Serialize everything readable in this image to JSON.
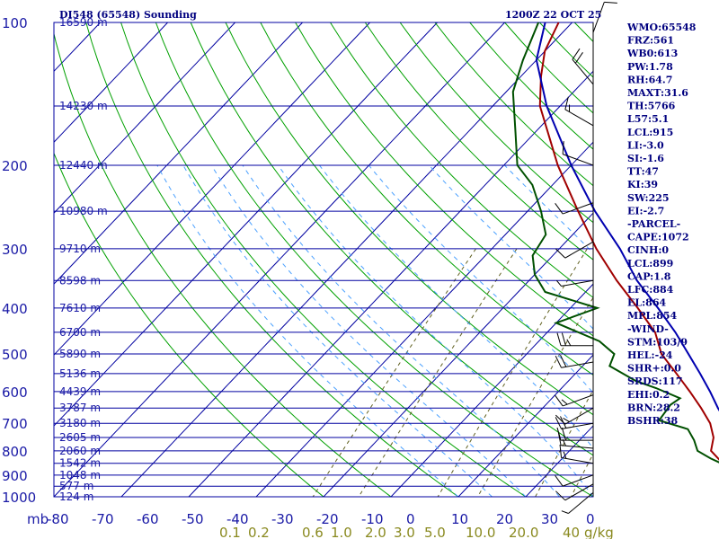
{
  "chart_data": {
    "type": "line",
    "title": "DI548 (65548) Sounding",
    "valid_time": "1200Z 22 OCT 25",
    "xlabel": "°C",
    "x_unit_label": "mb",
    "ylim": [
      1000,
      100
    ],
    "xlim": [
      -80,
      0
    ],
    "pressure_levels": [
      {
        "p": 100,
        "label": "100"
      },
      {
        "p": 200,
        "label": "200"
      },
      {
        "p": 300,
        "label": "300"
      },
      {
        "p": 400,
        "label": "400"
      },
      {
        "p": 500,
        "label": "500"
      },
      {
        "p": 600,
        "label": "600"
      },
      {
        "p": 700,
        "label": "700"
      },
      {
        "p": 800,
        "label": "800"
      },
      {
        "p": 900,
        "label": "900"
      },
      {
        "p": 1000,
        "label": "1000"
      }
    ],
    "height_labels": [
      {
        "p": 100,
        "label": "16590 m"
      },
      {
        "p": 150,
        "label": "14230 m"
      },
      {
        "p": 200,
        "label": "12440 m"
      },
      {
        "p": 250,
        "label": "10980 m"
      },
      {
        "p": 300,
        "label": "9710 m"
      },
      {
        "p": 350,
        "label": "8598 m"
      },
      {
        "p": 400,
        "label": "7610 m"
      },
      {
        "p": 450,
        "label": "6700 m"
      },
      {
        "p": 500,
        "label": "5890 m"
      },
      {
        "p": 550,
        "label": "5136 m"
      },
      {
        "p": 600,
        "label": "4439 m"
      },
      {
        "p": 650,
        "label": "3787 m"
      },
      {
        "p": 700,
        "label": "3180 m"
      },
      {
        "p": 750,
        "label": "2605 m"
      },
      {
        "p": 800,
        "label": "2060 m"
      },
      {
        "p": 850,
        "label": "1542 m"
      },
      {
        "p": 900,
        "label": "1048 m"
      },
      {
        "p": 950,
        "label": "577 m"
      },
      {
        "p": 1000,
        "label": "124 m"
      }
    ],
    "temp_ticks": [
      "-80",
      "-70",
      "-60",
      "-50",
      "-40",
      "-30",
      "-20",
      "-10",
      "0",
      "10",
      "20",
      "30",
      "0"
    ],
    "mixing_ratio_labels": [
      "0.1",
      "0.2",
      "0.6",
      "1.0",
      "2.0",
      "3.0",
      "5.0",
      "10.0",
      "20.0",
      "40",
      "g/kg"
    ],
    "series": [
      {
        "name": "Temperature",
        "color": "#a00000",
        "points": [
          {
            "p": 995,
            "t": 26
          },
          {
            "p": 975,
            "t": 24
          },
          {
            "p": 950,
            "t": 21.5
          },
          {
            "p": 925,
            "t": 20.5
          },
          {
            "p": 900,
            "t": 19
          },
          {
            "p": 875,
            "t": 17
          },
          {
            "p": 850,
            "t": 14.5
          },
          {
            "p": 800,
            "t": 11
          },
          {
            "p": 750,
            "t": 9.5
          },
          {
            "p": 700,
            "t": 7
          },
          {
            "p": 650,
            "t": 3.5
          },
          {
            "p": 600,
            "t": -0.5
          },
          {
            "p": 550,
            "t": -5
          },
          {
            "p": 500,
            "t": -10
          },
          {
            "p": 450,
            "t": -14
          },
          {
            "p": 400,
            "t": -20
          },
          {
            "p": 350,
            "t": -27
          },
          {
            "p": 300,
            "t": -34.5
          },
          {
            "p": 250,
            "t": -42.5
          },
          {
            "p": 200,
            "t": -52
          },
          {
            "p": 150,
            "t": -63
          },
          {
            "p": 130,
            "t": -67
          },
          {
            "p": 115,
            "t": -70
          },
          {
            "p": 100,
            "t": -72
          }
        ]
      },
      {
        "name": "Dewpoint",
        "color": "#005000",
        "points": [
          {
            "p": 990,
            "t": 20
          },
          {
            "p": 960,
            "t": 18
          },
          {
            "p": 930,
            "t": 17
          },
          {
            "p": 900,
            "t": 16
          },
          {
            "p": 870,
            "t": 16.5
          },
          {
            "p": 830,
            "t": 12
          },
          {
            "p": 800,
            "t": 9
          },
          {
            "p": 760,
            "t": 7
          },
          {
            "p": 720,
            "t": 4.5
          },
          {
            "p": 690,
            "t": -1
          },
          {
            "p": 640,
            "t": -1.5
          },
          {
            "p": 620,
            "t": -1
          },
          {
            "p": 590,
            "t": -6
          },
          {
            "p": 570,
            "t": -10
          },
          {
            "p": 530,
            "t": -16
          },
          {
            "p": 500,
            "t": -17
          },
          {
            "p": 470,
            "t": -21
          },
          {
            "p": 430,
            "t": -30
          },
          {
            "p": 400,
            "t": -26
          },
          {
            "p": 370,
            "t": -36
          },
          {
            "p": 340,
            "t": -40
          },
          {
            "p": 310,
            "t": -43
          },
          {
            "p": 280,
            "t": -44
          },
          {
            "p": 250,
            "t": -48
          },
          {
            "p": 220,
            "t": -53
          },
          {
            "p": 200,
            "t": -58
          },
          {
            "p": 170,
            "t": -63
          },
          {
            "p": 140,
            "t": -69
          },
          {
            "p": 120,
            "t": -72
          },
          {
            "p": 100,
            "t": -75
          }
        ]
      },
      {
        "name": "Parcel",
        "color": "#0000b0",
        "points": [
          {
            "p": 985,
            "t": 27
          },
          {
            "p": 950,
            "t": 24
          },
          {
            "p": 915,
            "t": 20.5
          },
          {
            "p": 899,
            "t": 19.5
          },
          {
            "p": 850,
            "t": 17.5
          },
          {
            "p": 800,
            "t": 15
          },
          {
            "p": 750,
            "t": 12.5
          },
          {
            "p": 700,
            "t": 9.5
          },
          {
            "p": 650,
            "t": 6
          },
          {
            "p": 600,
            "t": 2.5
          },
          {
            "p": 550,
            "t": -1.5
          },
          {
            "p": 500,
            "t": -6
          },
          {
            "p": 450,
            "t": -11
          },
          {
            "p": 400,
            "t": -17
          },
          {
            "p": 350,
            "t": -24
          },
          {
            "p": 300,
            "t": -31
          },
          {
            "p": 250,
            "t": -40
          },
          {
            "p": 200,
            "t": -50
          },
          {
            "p": 150,
            "t": -62
          },
          {
            "p": 120,
            "t": -70
          },
          {
            "p": 100,
            "t": -74
          }
        ]
      }
    ],
    "wind_barbs": [
      {
        "p": 105,
        "dir": 20,
        "spd": 10
      },
      {
        "p": 135,
        "dir": 320,
        "spd": 20
      },
      {
        "p": 165,
        "dir": 300,
        "spd": 15
      },
      {
        "p": 200,
        "dir": 290,
        "spd": 10
      },
      {
        "p": 240,
        "dir": 250,
        "spd": 10
      },
      {
        "p": 290,
        "dir": 240,
        "spd": 10
      },
      {
        "p": 350,
        "dir": 260,
        "spd": 5
      },
      {
        "p": 480,
        "dir": 270,
        "spd": 25
      },
      {
        "p": 520,
        "dir": 260,
        "spd": 20
      },
      {
        "p": 610,
        "dir": 250,
        "spd": 15
      },
      {
        "p": 650,
        "dir": 240,
        "spd": 15
      },
      {
        "p": 700,
        "dir": 260,
        "spd": 20
      },
      {
        "p": 760,
        "dir": 270,
        "spd": 20
      },
      {
        "p": 790,
        "dir": 275,
        "spd": 15
      },
      {
        "p": 850,
        "dir": 280,
        "spd": 15
      },
      {
        "p": 900,
        "dir": 250,
        "spd": 10
      },
      {
        "p": 940,
        "dir": 240,
        "spd": 10
      },
      {
        "p": 980,
        "dir": 230,
        "spd": 5
      }
    ]
  },
  "indices": [
    "WMO:65548",
    "FRZ:561",
    "WB0:613",
    "PW:1.78",
    "RH:64.7",
    "MAXT:31.6",
    "TH:5766",
    "L57:5.1",
    "LCL:915",
    "LI:-3.0",
    "SI:-1.6",
    "TT:47",
    "KI:39",
    "SW:225",
    "EI:-2.7",
    "-PARCEL-",
    "CAPE:1072",
    "CINH:0",
    "LCL:899",
    "CAP:1.8",
    "LFC:884",
    "EL:864",
    "MPL:854",
    "-WIND-",
    "STM:103/9",
    "HEL:-24",
    "SHR+:0.0",
    "SRDS:117",
    "EHI:0.2",
    "BRN:28.2",
    "BSHR:38"
  ],
  "colors": {
    "grid": "#0000a0",
    "dry_adiabat": "#00a000",
    "mixing_ratio": "#606020",
    "moist": "#4aa0ff"
  }
}
